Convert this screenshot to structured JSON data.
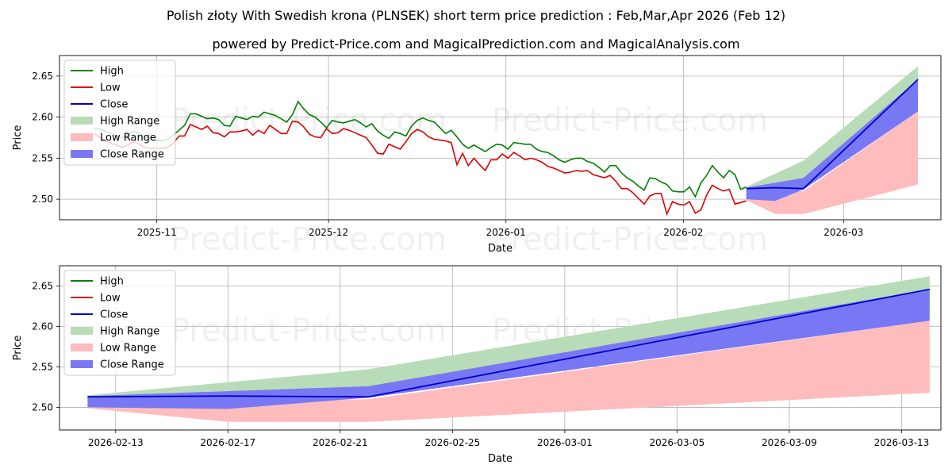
{
  "title": "Polish złoty With Swedish krona (PLNSEK) short term price prediction : Feb,Mar,Apr 2026 (Feb 12)",
  "subtitle": "powered by Predict-Price.com and MagicalPrediction.com and MagicalAnalysis.com",
  "watermark": "Predict-Price.com",
  "colors": {
    "high": "#008000",
    "low": "#dd0000",
    "close": "#0000cc",
    "high_range": "#b8dcb8",
    "low_range": "#ffbcbc",
    "close_range": "#7878f5"
  },
  "chart_data": [
    {
      "type": "line",
      "name": "history_and_forecast",
      "xlabel": "Date",
      "ylabel": "Price",
      "x_domain": [
        "2025-10-15",
        "2026-03-18"
      ],
      "ylim": [
        2.475,
        2.675
      ],
      "xticks": [
        {
          "date": "2025-11-01",
          "label": "2025-11"
        },
        {
          "date": "2025-12-01",
          "label": "2025-12"
        },
        {
          "date": "2026-01-01",
          "label": "2026-01"
        },
        {
          "date": "2026-02-01",
          "label": "2026-02"
        },
        {
          "date": "2026-03-01",
          "label": "2026-03"
        }
      ],
      "yticks": [
        2.5,
        2.55,
        2.6,
        2.65
      ],
      "legend": [
        "High",
        "Low",
        "Close",
        "High Range",
        "Low Range",
        "Close Range"
      ],
      "legend_position": "top-left",
      "history_start": "2025-10-21",
      "history_end": "2026-02-12",
      "high": [
        2.586,
        2.585,
        2.583,
        2.58,
        2.577,
        2.575,
        2.578,
        2.583,
        2.58,
        2.576,
        2.574,
        2.572,
        2.571,
        2.573,
        2.578,
        2.584,
        2.59,
        2.604,
        2.604,
        2.601,
        2.598,
        2.599,
        2.597,
        2.59,
        2.589,
        2.601,
        2.599,
        2.597,
        2.601,
        2.6,
        2.606,
        2.604,
        2.602,
        2.598,
        2.594,
        2.603,
        2.619,
        2.61,
        2.603,
        2.6,
        2.594,
        2.587,
        2.596,
        2.594,
        2.593,
        2.595,
        2.597,
        2.593,
        2.588,
        2.592,
        2.583,
        2.578,
        2.574,
        2.582,
        2.58,
        2.577,
        2.589,
        2.596,
        2.599,
        2.596,
        2.594,
        2.587,
        2.58,
        2.584,
        2.576,
        2.567,
        2.562,
        2.566,
        2.562,
        2.558,
        2.563,
        2.567,
        2.566,
        2.561,
        2.569,
        2.568,
        2.567,
        2.567,
        2.561,
        2.558,
        2.557,
        2.553,
        2.548,
        2.545,
        2.548,
        2.55,
        2.55,
        2.546,
        2.544,
        2.539,
        2.533,
        2.541,
        2.541,
        2.532,
        2.526,
        2.522,
        2.516,
        2.511,
        2.526,
        2.525,
        2.521,
        2.518,
        2.51,
        2.509,
        2.509,
        2.515,
        2.503,
        2.52,
        2.529,
        2.541,
        2.533,
        2.526,
        2.535,
        2.53,
        2.512,
        2.515
      ],
      "low": [
        2.58,
        2.576,
        2.571,
        2.568,
        2.566,
        2.563,
        2.566,
        2.57,
        2.567,
        2.563,
        2.562,
        2.562,
        2.562,
        2.563,
        2.568,
        2.577,
        2.577,
        2.591,
        2.588,
        2.585,
        2.589,
        2.581,
        2.58,
        2.576,
        2.582,
        2.582,
        2.583,
        2.585,
        2.578,
        2.584,
        2.58,
        2.59,
        2.585,
        2.58,
        2.58,
        2.595,
        2.594,
        2.588,
        2.579,
        2.576,
        2.575,
        2.586,
        2.58,
        2.581,
        2.586,
        2.584,
        2.581,
        2.578,
        2.575,
        2.566,
        2.556,
        2.555,
        2.567,
        2.564,
        2.561,
        2.57,
        2.58,
        2.585,
        2.582,
        2.576,
        2.573,
        2.572,
        2.571,
        2.569,
        2.542,
        2.556,
        2.541,
        2.55,
        2.542,
        2.535,
        2.548,
        2.548,
        2.555,
        2.55,
        2.557,
        2.553,
        2.548,
        2.55,
        2.548,
        2.545,
        2.54,
        2.538,
        2.535,
        2.532,
        2.533,
        2.535,
        2.534,
        2.535,
        2.53,
        2.528,
        2.526,
        2.529,
        2.522,
        2.513,
        2.513,
        2.508,
        2.501,
        2.494,
        2.504,
        2.507,
        2.507,
        2.482,
        2.497,
        2.494,
        2.493,
        2.497,
        2.483,
        2.487,
        2.505,
        2.517,
        2.513,
        2.51,
        2.512,
        2.494,
        2.496,
        2.498
      ],
      "close_forecast": [
        [
          "2026-02-12",
          2.513
        ],
        [
          "2026-02-17",
          2.514
        ],
        [
          "2026-02-22",
          2.513
        ],
        [
          "2026-03-14",
          2.646
        ]
      ],
      "high_range": {
        "upper": [
          [
            "2026-02-12",
            2.515
          ],
          [
            "2026-02-22",
            2.547
          ],
          [
            "2026-03-14",
            2.662
          ]
        ],
        "lower": [
          [
            "2026-02-12",
            2.513
          ],
          [
            "2026-02-22",
            2.513
          ],
          [
            "2026-03-14",
            2.622
          ]
        ]
      },
      "low_range": {
        "upper": [
          [
            "2026-02-12",
            2.505
          ],
          [
            "2026-02-22",
            2.51
          ],
          [
            "2026-03-14",
            2.607
          ]
        ],
        "lower": [
          [
            "2026-02-12",
            2.499
          ],
          [
            "2026-02-17",
            2.482
          ],
          [
            "2026-02-22",
            2.482
          ],
          [
            "2026-03-14",
            2.518
          ]
        ]
      },
      "close_range": {
        "upper": [
          [
            "2026-02-12",
            2.514
          ],
          [
            "2026-02-22",
            2.526
          ],
          [
            "2026-03-14",
            2.646
          ]
        ],
        "lower": [
          [
            "2026-02-12",
            2.5
          ],
          [
            "2026-02-17",
            2.498
          ],
          [
            "2026-02-22",
            2.512
          ],
          [
            "2026-03-14",
            2.607
          ]
        ]
      }
    },
    {
      "type": "line",
      "name": "forecast_zoom",
      "xlabel": "Date",
      "ylabel": "Price",
      "x_domain": [
        "2026-02-11",
        "2026-03-14.4"
      ],
      "ylim": [
        2.472,
        2.675
      ],
      "xticks": [
        {
          "date": "2026-02-13",
          "label": "2026-02-13"
        },
        {
          "date": "2026-02-17",
          "label": "2026-02-17"
        },
        {
          "date": "2026-02-21",
          "label": "2026-02-21"
        },
        {
          "date": "2026-02-25",
          "label": "2026-02-25"
        },
        {
          "date": "2026-03-01",
          "label": "2026-03-01"
        },
        {
          "date": "2026-03-05",
          "label": "2026-03-05"
        },
        {
          "date": "2026-03-09",
          "label": "2026-03-09"
        },
        {
          "date": "2026-03-13",
          "label": "2026-03-13"
        }
      ],
      "yticks": [
        2.5,
        2.55,
        2.6,
        2.65
      ],
      "legend": [
        "High",
        "Low",
        "Close",
        "High Range",
        "Low Range",
        "Close Range"
      ],
      "legend_position": "top-left",
      "close_forecast": [
        [
          "2026-02-12",
          2.513
        ],
        [
          "2026-02-17",
          2.514
        ],
        [
          "2026-02-22",
          2.513
        ],
        [
          "2026-03-14",
          2.646
        ]
      ],
      "high_range": {
        "upper": [
          [
            "2026-02-12",
            2.515
          ],
          [
            "2026-02-22",
            2.547
          ],
          [
            "2026-03-14",
            2.662
          ]
        ],
        "lower": [
          [
            "2026-02-12",
            2.513
          ],
          [
            "2026-02-22",
            2.513
          ],
          [
            "2026-03-14",
            2.622
          ]
        ]
      },
      "low_range": {
        "upper": [
          [
            "2026-02-12",
            2.505
          ],
          [
            "2026-02-22",
            2.51
          ],
          [
            "2026-03-14",
            2.607
          ]
        ],
        "lower": [
          [
            "2026-02-12",
            2.499
          ],
          [
            "2026-02-17",
            2.482
          ],
          [
            "2026-02-22",
            2.482
          ],
          [
            "2026-03-14",
            2.518
          ]
        ]
      },
      "close_range": {
        "upper": [
          [
            "2026-02-12",
            2.514
          ],
          [
            "2026-02-22",
            2.526
          ],
          [
            "2026-03-14",
            2.646
          ]
        ],
        "lower": [
          [
            "2026-02-12",
            2.5
          ],
          [
            "2026-02-17",
            2.498
          ],
          [
            "2026-02-22",
            2.512
          ],
          [
            "2026-03-14",
            2.607
          ]
        ]
      }
    }
  ]
}
